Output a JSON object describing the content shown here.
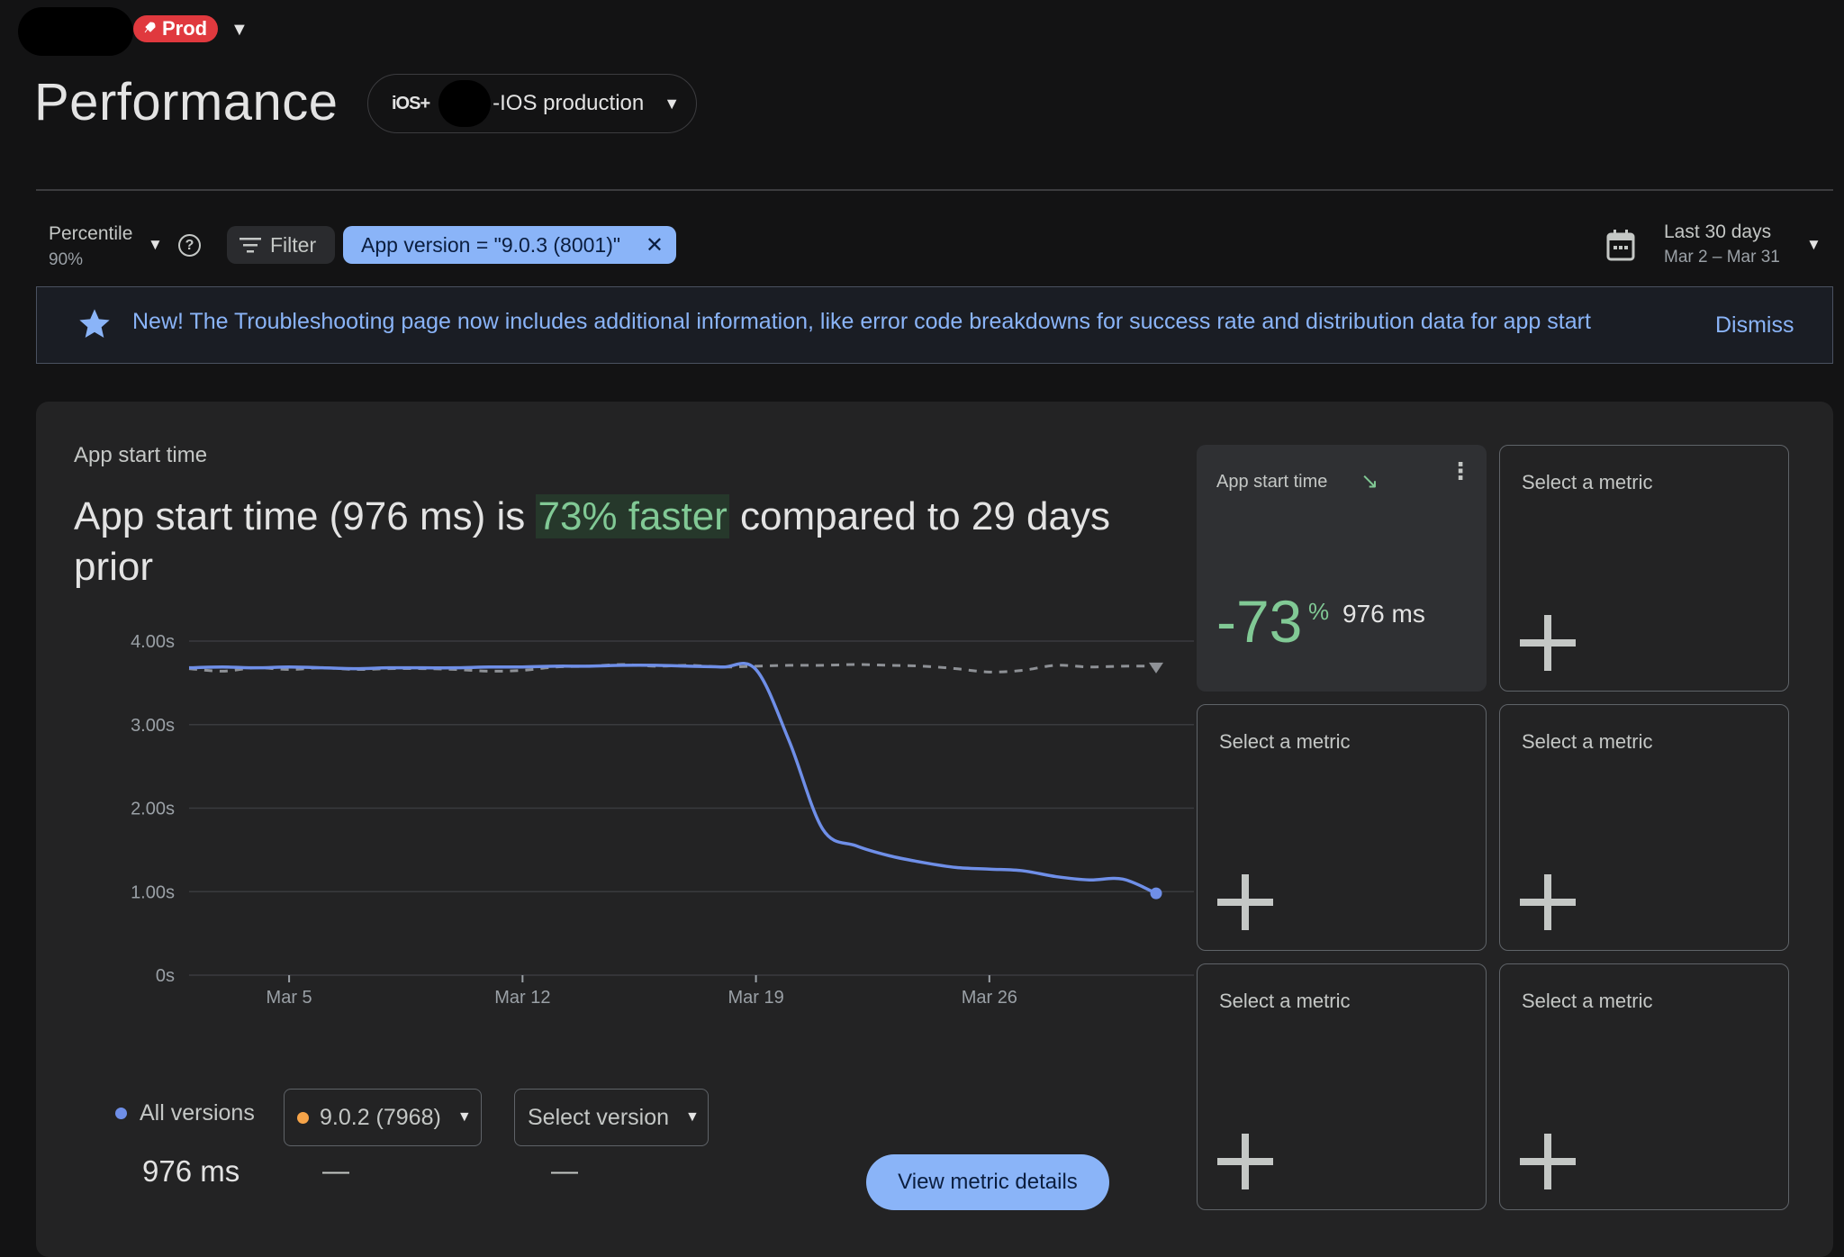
{
  "header": {
    "env_badge": "Prod",
    "page_title": "Performance",
    "app_platform": "iOS+",
    "app_name": "-IOS production"
  },
  "filters": {
    "percentile_label": "Percentile",
    "percentile_value": "90%",
    "filter_label": "Filter",
    "chip_label": "App version = \"9.0.3 (8001)\"",
    "date_label": "Last 30 days",
    "date_sub": "Mar 2 – Mar 31"
  },
  "banner": {
    "text": "New! The Troubleshooting page now includes additional information, like error code breakdowns for success rate and distribution data for app start",
    "dismiss": "Dismiss"
  },
  "card": {
    "label": "App start time",
    "headline_pre": "App start time (976 ms) is ",
    "headline_highlight": "73% faster",
    "headline_post": " compared to 29 days prior"
  },
  "legend": {
    "all_label": "All versions",
    "all_value": "976 ms",
    "version1_label": "9.0.2 (7968)",
    "version1_value": "—",
    "version2_label": "Select version",
    "version2_value": "—",
    "view_details": "View metric details"
  },
  "colors": {
    "all_versions": "#6f8fe8",
    "version1": "#f6a449",
    "positive": "#81c995",
    "accent": "#8ab4f8",
    "env_badge": "#e0393e"
  },
  "chart_data": {
    "type": "line",
    "x": [
      "Mar 2",
      "Mar 3",
      "Mar 4",
      "Mar 5",
      "Mar 6",
      "Mar 7",
      "Mar 8",
      "Mar 9",
      "Mar 10",
      "Mar 11",
      "Mar 12",
      "Mar 13",
      "Mar 14",
      "Mar 15",
      "Mar 16",
      "Mar 17",
      "Mar 18",
      "Mar 19",
      "Mar 20",
      "Mar 21",
      "Mar 22",
      "Mar 23",
      "Mar 24",
      "Mar 25",
      "Mar 26",
      "Mar 27",
      "Mar 28",
      "Mar 29",
      "Mar 30",
      "Mar 31"
    ],
    "x_ticks": [
      "Mar 5",
      "Mar 12",
      "Mar 19",
      "Mar 26"
    ],
    "y_ticks": [
      "0s",
      "1.00s",
      "2.00s",
      "3.00s",
      "4.00s"
    ],
    "ylim": [
      0,
      4
    ],
    "series": [
      {
        "name": "All versions",
        "style": "solid",
        "values": [
          3.68,
          3.69,
          3.68,
          3.69,
          3.68,
          3.67,
          3.68,
          3.68,
          3.68,
          3.69,
          3.69,
          3.7,
          3.7,
          3.71,
          3.71,
          3.7,
          3.69,
          3.66,
          2.8,
          1.75,
          1.55,
          1.43,
          1.35,
          1.29,
          1.27,
          1.25,
          1.18,
          1.14,
          1.15,
          0.98
        ]
      },
      {
        "name": "9.0.2 (7968)",
        "style": "dashed",
        "values": [
          3.67,
          3.64,
          3.68,
          3.66,
          3.68,
          3.66,
          3.67,
          3.67,
          3.66,
          3.64,
          3.65,
          3.69,
          3.7,
          3.72,
          3.7,
          3.71,
          3.69,
          3.7,
          3.71,
          3.71,
          3.72,
          3.71,
          3.7,
          3.67,
          3.63,
          3.65,
          3.71,
          3.69,
          3.7,
          3.7
        ]
      }
    ],
    "grid": true
  },
  "tiles": [
    {
      "label": "App start time",
      "active": true,
      "percent": "-73",
      "percent_sign": "%",
      "value": "976 ms",
      "trend_icon": "trend-down-icon"
    },
    {
      "label": "Select a metric",
      "active": false
    },
    {
      "label": "Select a metric",
      "active": false
    },
    {
      "label": "Select a metric",
      "active": false
    },
    {
      "label": "Select a metric",
      "active": false
    },
    {
      "label": "Select a metric",
      "active": false
    }
  ]
}
